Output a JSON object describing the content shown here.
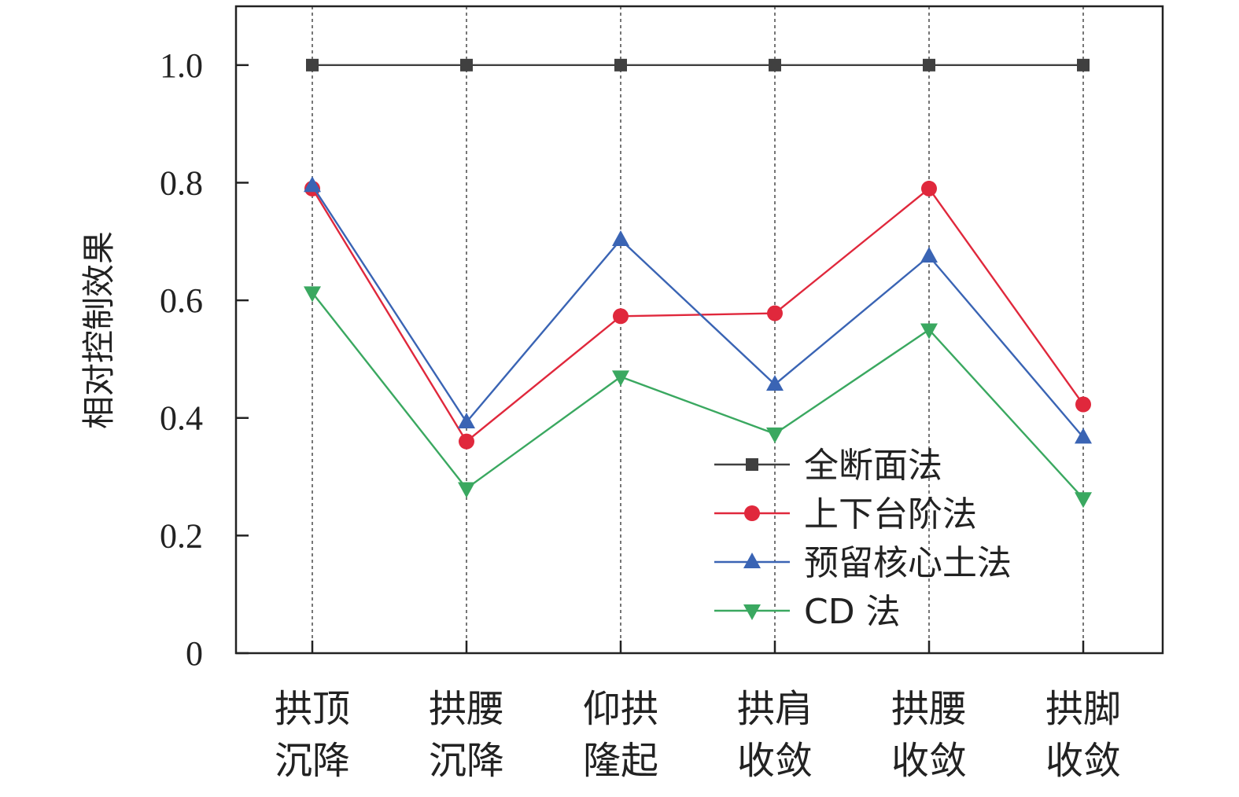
{
  "chart_data": {
    "type": "line",
    "title": "",
    "xlabel": "",
    "ylabel": "相对控制效果",
    "ylim": [
      0,
      1.1
    ],
    "yticks": [
      {
        "value": 0,
        "label": "0"
      },
      {
        "value": 0.2,
        "label": "0.2"
      },
      {
        "value": 0.4,
        "label": "0.4"
      },
      {
        "value": 0.6,
        "label": "0.6"
      },
      {
        "value": 0.8,
        "label": "0.8"
      },
      {
        "value": 1.0,
        "label": "1.0"
      }
    ],
    "categories": [
      [
        "拱顶",
        "沉降"
      ],
      [
        "拱腰",
        "沉降"
      ],
      [
        "仰拱",
        "隆起"
      ],
      [
        "拱肩",
        "收敛"
      ],
      [
        "拱腰",
        "收敛"
      ],
      [
        "拱脚",
        "收敛"
      ]
    ],
    "grid": "vertical-dotted",
    "legend_position": "lower-right",
    "series": [
      {
        "name": "全断面法",
        "color": "#404040",
        "marker": "square",
        "values": [
          1.0,
          1.0,
          1.0,
          1.0,
          1.0,
          1.0
        ]
      },
      {
        "name": "上下台阶法",
        "color": "#e0283c",
        "marker": "circle",
        "values": [
          0.79,
          0.36,
          0.573,
          0.578,
          0.79,
          0.423
        ]
      },
      {
        "name": "预留核心土法",
        "color": "#3a64b4",
        "marker": "triangle-up",
        "values": [
          0.795,
          0.393,
          0.703,
          0.457,
          0.675,
          0.367
        ]
      },
      {
        "name": "CD 法",
        "color": "#3aa860",
        "marker": "triangle-down",
        "values": [
          0.613,
          0.28,
          0.47,
          0.373,
          0.55,
          0.263
        ]
      }
    ]
  }
}
